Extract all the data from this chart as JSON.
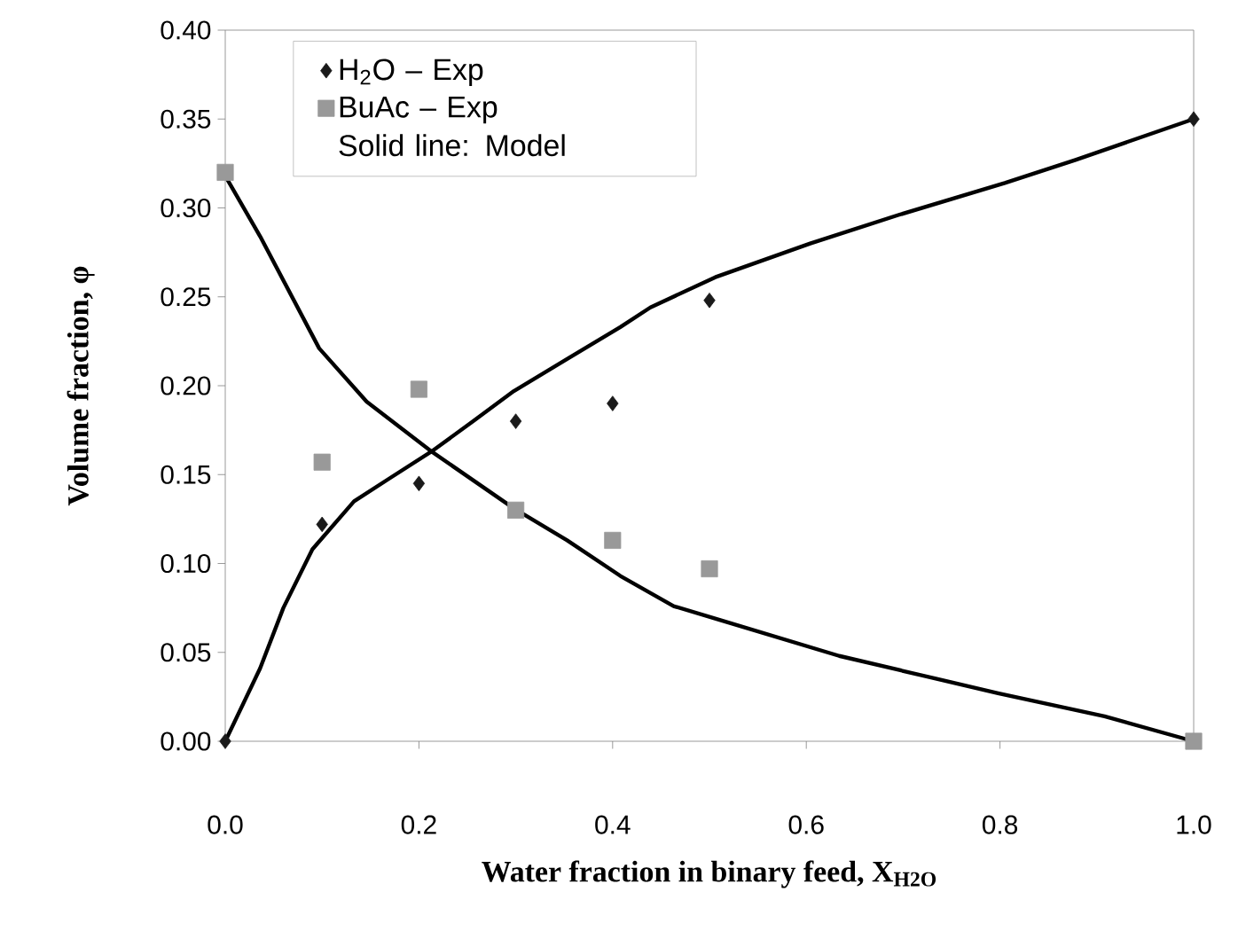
{
  "chart_data": {
    "type": "scatter",
    "xlabel": "Water fraction in binary feed, X$_{H2O}$",
    "ylabel": "Volume fraction, φ",
    "annotations": [
      "Solid line: Model"
    ],
    "xlim": [
      0,
      1
    ],
    "ylim": [
      0,
      0.4
    ],
    "xticks": [
      {
        "value": 0,
        "label": "0.0"
      },
      {
        "value": 0.2,
        "label": "0.2"
      },
      {
        "value": 0.4,
        "label": "0.4"
      },
      {
        "value": 0.6,
        "label": "0.6"
      },
      {
        "value": 0.8,
        "label": "0.8"
      },
      {
        "value": 1,
        "label": "1.0"
      }
    ],
    "yticks": [
      {
        "value": 0,
        "label": "0.00"
      },
      {
        "value": 0.05,
        "label": "0.05"
      },
      {
        "value": 0.1,
        "label": "0.10"
      },
      {
        "value": 0.15,
        "label": "0.15"
      },
      {
        "value": 0.2,
        "label": "0.20"
      },
      {
        "value": 0.25,
        "label": "0.25"
      },
      {
        "value": 0.3,
        "label": "0.30"
      },
      {
        "value": 0.35,
        "label": "0.35"
      },
      {
        "value": 0.4,
        "label": "0.40"
      }
    ],
    "grid": false,
    "legend": "top left",
    "series": [
      {
        "type": "line",
        "marker": "none",
        "line_style": "solid",
        "color": "#000000",
        "x": [
          0,
          0.036,
          0.06,
          0.09,
          0.133,
          0.17,
          0.213,
          0.256,
          0.298,
          0.353,
          0.408,
          0.439,
          0.506,
          0.604,
          0.695,
          0.805,
          0.878,
          1.0
        ],
        "values": [
          0,
          0.041,
          0.075,
          0.108,
          0.135,
          0.148,
          0.163,
          0.18,
          0.197,
          0.215,
          0.233,
          0.244,
          0.261,
          0.28,
          0.296,
          0.314,
          0.327,
          0.35
        ]
      },
      {
        "type": "line",
        "marker": "none",
        "line_style": "solid",
        "color": "#000000",
        "x": [
          0,
          0.036,
          0.097,
          0.146,
          0.213,
          0.298,
          0.353,
          0.408,
          0.463,
          0.512,
          0.634,
          0.798,
          0.908,
          1.0
        ],
        "values": [
          0.318,
          0.284,
          0.221,
          0.191,
          0.163,
          0.131,
          0.113,
          0.093,
          0.076,
          0.068,
          0.048,
          0.027,
          0.014,
          0
        ]
      },
      {
        "name": "H$_{2}$O  – Exp",
        "marker": "diamond",
        "color": "#1a1a1a",
        "x": [
          0,
          0.1,
          0.2,
          0.3,
          0.4,
          0.5,
          1.0
        ],
        "values": [
          0,
          0.122,
          0.145,
          0.18,
          0.19,
          0.248,
          0.35
        ]
      },
      {
        "name": "BuAc – Exp",
        "marker": "square",
        "color": "#999999",
        "x": [
          0,
          0.1,
          0.2,
          0.3,
          0.4,
          0.5,
          1.0
        ],
        "values": [
          0.32,
          0.157,
          0.198,
          0.13,
          0.113,
          0.097,
          0
        ]
      }
    ]
  }
}
